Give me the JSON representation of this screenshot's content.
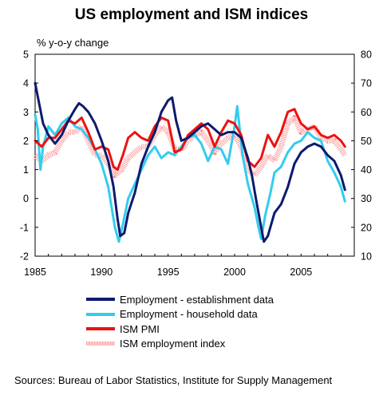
{
  "chart_data": {
    "type": "line",
    "title": "US employment and ISM indices",
    "ylabel": "% y-o-y change",
    "xlim": [
      1985,
      2009
    ],
    "ylim_left": [
      -2,
      5
    ],
    "ylim_right": [
      10,
      80
    ],
    "x_ticks": [
      "1985",
      "1990",
      "1995",
      "2000",
      "2005"
    ],
    "y_ticks_left": [
      "5",
      "4",
      "3",
      "2",
      "1",
      "0",
      "-1",
      "-2"
    ],
    "y_ticks_right": [
      "80",
      "70",
      "60",
      "50",
      "40",
      "30",
      "20",
      "10"
    ],
    "legend_position": "bottom",
    "series": [
      {
        "name": "Employment - establishment data",
        "axis": "left",
        "color": "#0d1a6e",
        "x": [
          1985.0,
          1985.3,
          1985.6,
          1986.0,
          1986.5,
          1987.0,
          1987.5,
          1988.0,
          1988.3,
          1988.6,
          1989.0,
          1989.5,
          1990.0,
          1990.5,
          1990.9,
          1991.2,
          1991.4,
          1991.7,
          1992.0,
          1992.5,
          1993.0,
          1993.5,
          1994.0,
          1994.5,
          1995.0,
          1995.3,
          1995.6,
          1996.0,
          1996.5,
          1997.0,
          1997.5,
          1998.0,
          1998.5,
          1999.0,
          1999.5,
          2000.0,
          2000.5,
          2001.0,
          2001.3,
          2001.6,
          2002.0,
          2002.2,
          2002.5,
          2003.0,
          2003.5,
          2004.0,
          2004.5,
          2005.0,
          2005.5,
          2006.0,
          2006.5,
          2007.0,
          2007.5,
          2008.0,
          2008.3
        ],
        "y": [
          4.0,
          3.3,
          2.6,
          2.2,
          1.9,
          2.2,
          2.7,
          3.1,
          3.3,
          3.2,
          3.0,
          2.6,
          2.0,
          1.3,
          0.4,
          -0.7,
          -1.3,
          -1.2,
          -0.5,
          0.2,
          1.2,
          1.8,
          2.3,
          3.0,
          3.4,
          3.5,
          2.7,
          2.0,
          2.1,
          2.3,
          2.5,
          2.6,
          2.4,
          2.2,
          2.3,
          2.3,
          2.1,
          1.4,
          0.8,
          0.0,
          -1.0,
          -1.5,
          -1.3,
          -0.5,
          -0.2,
          0.4,
          1.2,
          1.6,
          1.8,
          1.9,
          1.8,
          1.5,
          1.3,
          0.8,
          0.3
        ]
      },
      {
        "name": "Employment - household data",
        "axis": "left",
        "color": "#33ccee",
        "x": [
          1985.0,
          1985.2,
          1985.4,
          1985.6,
          1986.0,
          1986.5,
          1987.0,
          1987.5,
          1988.0,
          1988.5,
          1989.0,
          1989.5,
          1990.0,
          1990.5,
          1991.0,
          1991.3,
          1991.6,
          1992.0,
          1992.5,
          1993.0,
          1993.5,
          1994.0,
          1994.5,
          1995.0,
          1995.5,
          1996.0,
          1996.5,
          1997.0,
          1997.5,
          1998.0,
          1998.5,
          1999.0,
          1999.5,
          2000.0,
          2000.2,
          2000.6,
          2001.0,
          2001.5,
          2001.8,
          2002.0,
          2002.3,
          2002.7,
          2003.0,
          2003.5,
          2004.0,
          2004.5,
          2005.0,
          2005.5,
          2006.0,
          2006.5,
          2007.0,
          2007.5,
          2008.0,
          2008.3
        ],
        "y": [
          2.9,
          2.4,
          1.0,
          1.8,
          2.5,
          2.2,
          2.6,
          2.8,
          2.5,
          2.4,
          2.1,
          1.7,
          1.2,
          0.4,
          -1.0,
          -1.5,
          -0.9,
          0.0,
          0.5,
          1.0,
          1.5,
          1.8,
          1.4,
          1.6,
          1.5,
          1.8,
          2.1,
          2.2,
          1.9,
          1.3,
          1.8,
          1.7,
          1.2,
          2.5,
          3.2,
          1.5,
          0.5,
          -0.3,
          -1.0,
          -1.4,
          -0.6,
          0.2,
          0.9,
          1.1,
          1.6,
          1.9,
          2.0,
          2.3,
          2.1,
          2.0,
          1.3,
          0.9,
          0.4,
          -0.1
        ]
      },
      {
        "name": "ISM PMI",
        "axis": "right",
        "color": "#ee1111",
        "x": [
          1985.0,
          1985.5,
          1986.0,
          1986.5,
          1987.0,
          1987.5,
          1988.0,
          1988.5,
          1989.0,
          1989.5,
          1990.0,
          1990.5,
          1990.9,
          1991.2,
          1991.6,
          1992.0,
          1992.5,
          1993.0,
          1993.5,
          1994.0,
          1994.5,
          1995.0,
          1995.5,
          1996.0,
          1996.5,
          1997.0,
          1997.5,
          1998.0,
          1998.5,
          1999.0,
          1999.5,
          2000.0,
          2000.5,
          2001.0,
          2001.5,
          2002.0,
          2002.5,
          2003.0,
          2003.5,
          2004.0,
          2004.5,
          2005.0,
          2005.5,
          2006.0,
          2006.5,
          2007.0,
          2007.5,
          2008.0,
          2008.3
        ],
        "y": [
          50,
          48,
          51,
          51,
          54,
          57,
          56,
          58,
          53,
          47,
          48,
          47,
          41,
          40,
          45,
          51,
          53,
          51,
          50,
          55,
          58,
          57,
          46,
          47,
          52,
          54,
          56,
          54,
          48,
          53,
          57,
          56,
          52,
          43,
          41,
          44,
          52,
          48,
          53,
          60,
          61,
          56,
          54,
          55,
          52,
          51,
          52,
          50,
          48
        ]
      },
      {
        "name": "ISM employment index",
        "axis": "right",
        "color": "#ff9a9a",
        "x": [
          1985.0,
          1985.5,
          1986.0,
          1986.5,
          1987.0,
          1987.5,
          1988.0,
          1988.5,
          1989.0,
          1989.5,
          1990.0,
          1990.5,
          1991.0,
          1991.5,
          1992.0,
          1992.5,
          1993.0,
          1993.5,
          1994.0,
          1994.5,
          1995.0,
          1995.5,
          1996.0,
          1996.5,
          1997.0,
          1997.5,
          1998.0,
          1998.5,
          1999.0,
          1999.5,
          2000.0,
          2000.5,
          2001.0,
          2001.5,
          2002.0,
          2002.5,
          2003.0,
          2003.5,
          2004.0,
          2004.5,
          2005.0,
          2005.5,
          2006.0,
          2006.5,
          2007.0,
          2007.5,
          2008.0,
          2008.3
        ],
        "y": [
          45,
          43,
          45,
          46,
          50,
          53,
          53,
          55,
          50,
          45,
          45,
          42,
          38,
          40,
          44,
          46,
          48,
          48,
          52,
          55,
          53,
          47,
          47,
          50,
          52,
          53,
          50,
          46,
          49,
          51,
          52,
          48,
          40,
          38,
          41,
          45,
          43,
          48,
          56,
          58,
          53,
          54,
          55,
          51,
          50,
          50,
          47,
          45
        ]
      }
    ]
  },
  "legend": [
    {
      "label": "Employment - establishment data",
      "color": "#0d1a6e",
      "style": "solid"
    },
    {
      "label": "Employment - household data",
      "color": "#33ccee",
      "style": "solid"
    },
    {
      "label": "ISM PMI",
      "color": "#ee1111",
      "style": "solid"
    },
    {
      "label": "ISM employment index",
      "color": "#ff9a9a",
      "style": "dotted"
    }
  ],
  "source": "Sources: Bureau of Labor Statistics, Institute for Supply Management"
}
